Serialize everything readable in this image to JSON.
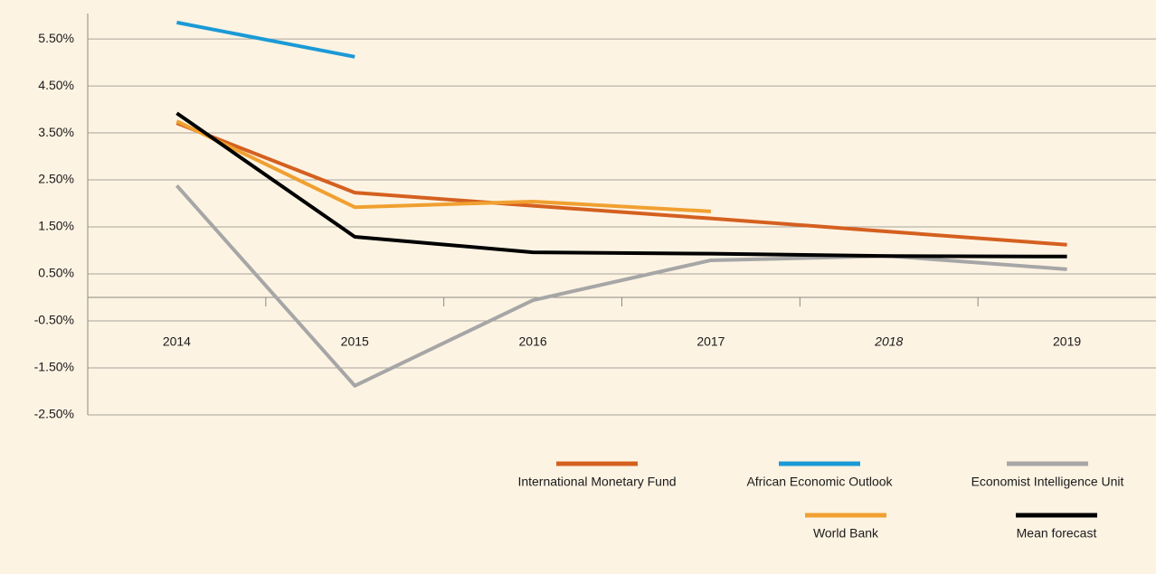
{
  "chart_data": {
    "type": "line",
    "categories": [
      "2014",
      "2015",
      "2016",
      "2017",
      "2018",
      "2019"
    ],
    "category_italic": [
      false,
      false,
      false,
      false,
      true,
      false
    ],
    "series": [
      {
        "name": "International Monetary Fund",
        "color": "#d4601f",
        "values": [
          3.71,
          2.23,
          1.95,
          1.68,
          1.4,
          1.12
        ]
      },
      {
        "name": "African Economic Outlook",
        "color": "#1a9ad6",
        "values": [
          5.85,
          5.12,
          null,
          null,
          null,
          null
        ]
      },
      {
        "name": "Economist Intelligence Unit",
        "color": "#a6a6a6",
        "values": [
          2.38,
          -1.88,
          -0.06,
          0.79,
          0.88,
          0.6
        ]
      },
      {
        "name": "World Bank",
        "color": "#f0a030",
        "values": [
          3.75,
          1.92,
          2.04,
          1.83,
          null,
          null
        ]
      },
      {
        "name": "Mean forecast",
        "color": "#000000",
        "values": [
          3.92,
          1.29,
          0.96,
          0.93,
          0.88,
          0.87
        ]
      }
    ],
    "ylim": [
      -2.5,
      6.04
    ],
    "yticks": [
      {
        "value": 5.5,
        "label": "5.50%"
      },
      {
        "value": 4.5,
        "label": "4.50%"
      },
      {
        "value": 3.5,
        "label": "3.50%"
      },
      {
        "value": 2.5,
        "label": "2.50%"
      },
      {
        "value": 1.5,
        "label": "1.50%"
      },
      {
        "value": 0.5,
        "label": "0.50%"
      },
      {
        "value": -0.5,
        "label": "-0.50%"
      },
      {
        "value": -1.5,
        "label": "-1.50%"
      },
      {
        "value": -2.5,
        "label": "-2.50%"
      }
    ],
    "grid": true,
    "legend": "bottom-right"
  }
}
